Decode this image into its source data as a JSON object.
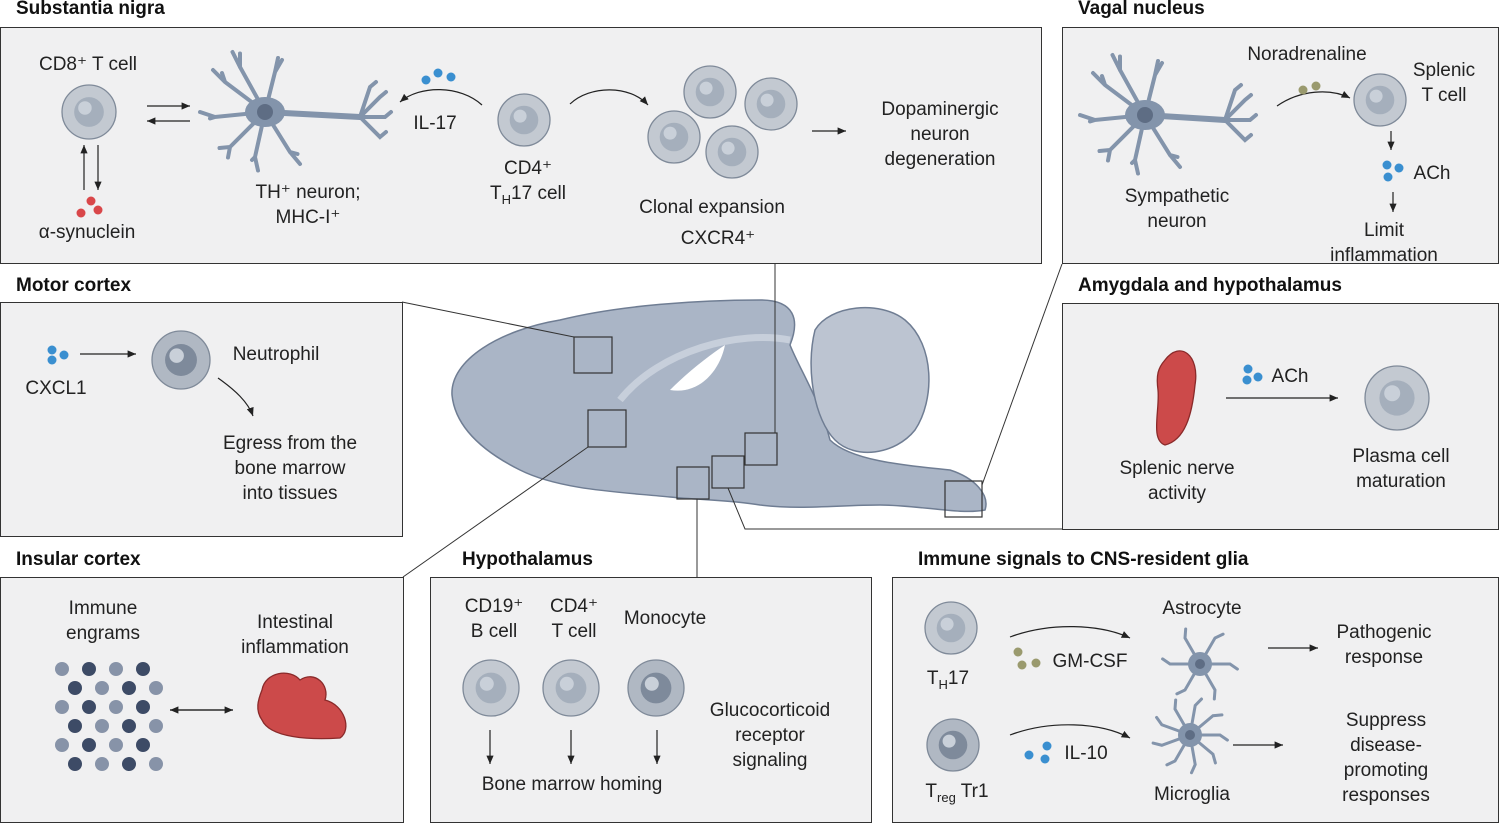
{
  "panels": {
    "substantia_nigra": {
      "title": "Substantia nigra",
      "cd8": "CD8⁺ T cell",
      "synuclein": "α-synuclein",
      "neuron": "TH⁺ neuron;\nMHC-I⁺",
      "il17": "IL-17",
      "cd4": "CD4⁺",
      "th17_t": "T",
      "th17_sub": "H",
      "th17_rest": "17 cell",
      "clonal": "Clonal expansion",
      "cxcr4": "CXCR4⁺",
      "outcome": "Dopaminergic\nneuron\ndegeneration"
    },
    "vagal_nucleus": {
      "title": "Vagal nucleus",
      "noradrenaline": "Noradrenaline",
      "splenic_t": "Splenic\nT cell",
      "ach": "ACh",
      "sympathetic": "Sympathetic\nneuron",
      "limit": "Limit inflammation"
    },
    "motor_cortex": {
      "title": "Motor cortex",
      "cxcl1": "CXCL1",
      "neutrophil": "Neutrophil",
      "egress": "Egress from the\nbone marrow\ninto tissues"
    },
    "amygdala": {
      "title": "Amygdala and hypothalamus",
      "ach": "ACh",
      "splenic_nerve": "Splenic nerve\nactivity",
      "plasma": "Plasma cell\nmaturation"
    },
    "insular_cortex": {
      "title": "Insular cortex",
      "engrams": "Immune\nengrams",
      "intestinal": "Intestinal\ninflammation"
    },
    "hypothalamus": {
      "title": "Hypothalamus",
      "cd19": "CD19⁺\nB cell",
      "cd4": "CD4⁺\nT cell",
      "monocyte": "Monocyte",
      "glucocorticoid": "Glucocorticoid\nreceptor\nsignaling",
      "homing": "Bone marrow homing"
    },
    "glia": {
      "title": "Immune signals to CNS-resident glia",
      "astrocyte": "Astrocyte",
      "pathogenic": "Pathogenic\nresponse",
      "th17_t": "T",
      "th17_sub": "H",
      "th17_rest": "17",
      "gmcsf": "GM-CSF",
      "il10": "IL-10",
      "suppress": "Suppress\ndisease-promoting\nresponses",
      "treg_t": "T",
      "treg_sub": "reg",
      "treg_rest": " Tr1",
      "microglia": "Microglia"
    }
  },
  "colors": {
    "panel_bg": "#f0f0f1",
    "cell": "#c3c9d1",
    "brain": "#aab5c6",
    "neuron": "#8394ab",
    "cytokine_blue": "#3a8fd0",
    "synuclein_red": "#d9474a",
    "cytokine_olive": "#9a9a6e",
    "spleen_red": "#cc4a4a",
    "engram_dark": "#3d4b66",
    "engram_light": "#8793a8"
  }
}
